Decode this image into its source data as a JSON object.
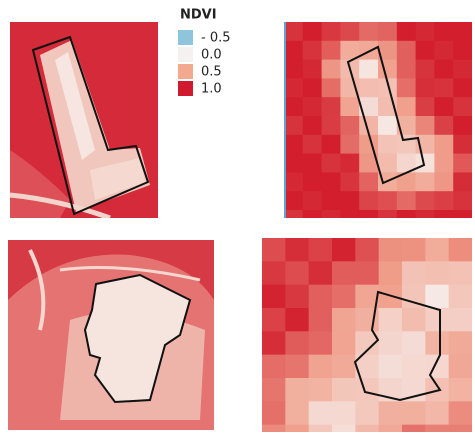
{
  "legend": {
    "title": "NDVI",
    "entries": [
      {
        "label": "- 0.5",
        "color": "#8ec5dd"
      },
      {
        "label": "0.0",
        "color": "#f4f1f0"
      },
      {
        "label": "0.5",
        "color": "#f2a98e"
      },
      {
        "label": "1.0",
        "color": "#cf1b2d"
      }
    ]
  }
}
